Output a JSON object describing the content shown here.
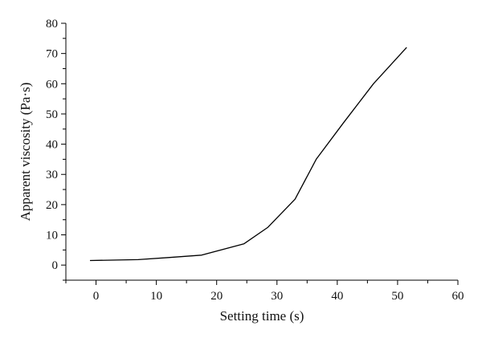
{
  "chart_data": {
    "type": "line",
    "xlabel": "Setting time (s)",
    "ylabel": "Apparent viscosity (Pa·s)",
    "xlim": [
      -5,
      60
    ],
    "ylim": [
      -5,
      80
    ],
    "x_ticks": [
      0,
      10,
      20,
      30,
      40,
      50,
      60
    ],
    "y_ticks": [
      0,
      10,
      20,
      30,
      40,
      50,
      60,
      70,
      80
    ],
    "grid": false,
    "series": [
      {
        "x": [
          -1,
          7,
          12,
          17.5,
          24.5,
          28.5,
          33,
          36.5,
          41,
          46,
          51.5
        ],
        "y": [
          1.5,
          1.8,
          2.5,
          3.3,
          7,
          12.5,
          21.8,
          35,
          47,
          60,
          72
        ]
      }
    ]
  }
}
